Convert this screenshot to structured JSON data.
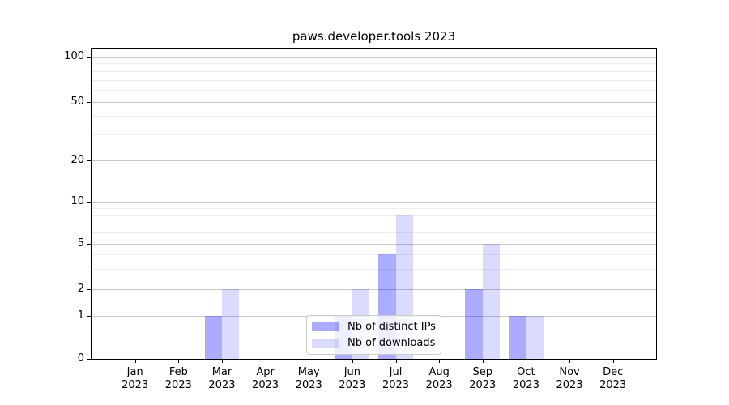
{
  "chart_data": {
    "type": "bar",
    "title": "paws.developer.tools 2023",
    "categories": [
      "Jan",
      "Feb",
      "Mar",
      "Apr",
      "May",
      "Jun",
      "Jul",
      "Aug",
      "Sep",
      "Oct",
      "Nov",
      "Dec"
    ],
    "category_year": "2023",
    "series": [
      {
        "name": "Nb of distinct IPs",
        "color": "rgba(0,0,255,0.33)",
        "values": [
          0,
          0,
          1,
          0,
          0,
          1,
          4,
          0,
          2,
          1,
          0,
          0
        ]
      },
      {
        "name": "Nb of downloads",
        "color": "rgba(0,0,255,0.14)",
        "values": [
          0,
          0,
          2,
          0,
          0,
          2,
          8,
          0,
          5,
          1,
          0,
          0
        ]
      }
    ],
    "y_axis": {
      "scale": "log-like",
      "major_ticks": [
        0,
        1,
        2,
        5,
        10,
        20,
        50,
        100
      ],
      "minor_ticks": [
        3,
        4,
        6,
        7,
        8,
        9,
        30,
        40,
        60,
        70,
        80,
        90
      ],
      "range": [
        0,
        110
      ]
    },
    "grid": {
      "major_color": "#c9c9c9",
      "minor_color": "#eeeeee"
    },
    "legend_position": "lower center"
  }
}
